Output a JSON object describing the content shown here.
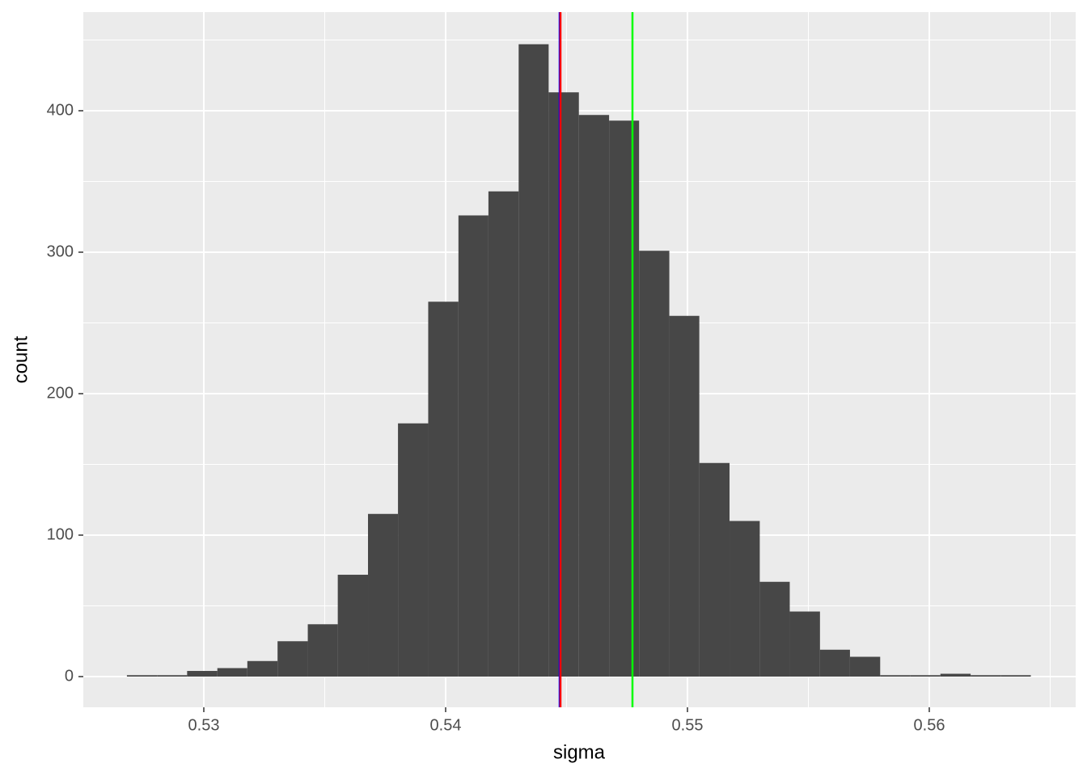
{
  "chart_data": {
    "type": "histogram",
    "x_label": "sigma",
    "y_label": "count",
    "bins": [
      0.52682,
      0.52807,
      0.52931,
      0.53056,
      0.5318,
      0.53305,
      0.5343,
      0.53554,
      0.53679,
      0.53803,
      0.53928,
      0.54053,
      0.54177,
      0.54302,
      0.54426,
      0.54551,
      0.54676,
      0.548,
      0.54925,
      0.55049,
      0.55174,
      0.55299,
      0.55423,
      0.55548,
      0.55672,
      0.55797,
      0.55922,
      0.56046,
      0.56171,
      0.56295,
      0.5642
    ],
    "values": [
      1,
      1,
      4,
      6,
      11,
      25,
      37,
      72,
      115,
      179,
      265,
      326,
      343,
      447,
      413,
      397,
      393,
      301,
      255,
      151,
      110,
      67,
      46,
      19,
      14,
      1,
      1,
      2,
      1,
      1
    ],
    "color": "#474747",
    "vlines": [
      {
        "value": 0.544716,
        "color": "#0000ff"
      },
      {
        "value": 0.544749,
        "color": "#ff0000"
      },
      {
        "value": 0.547726,
        "color": "#00ff00"
      }
    ],
    "xlim": [
      0.525017,
      0.566054
    ],
    "xticks": [
      0.53,
      0.54,
      0.55,
      0.56
    ],
    "ylim": [
      -21.7,
      469.7
    ],
    "yticks": [
      0,
      100,
      200,
      300,
      400
    ],
    "grid": true
  }
}
